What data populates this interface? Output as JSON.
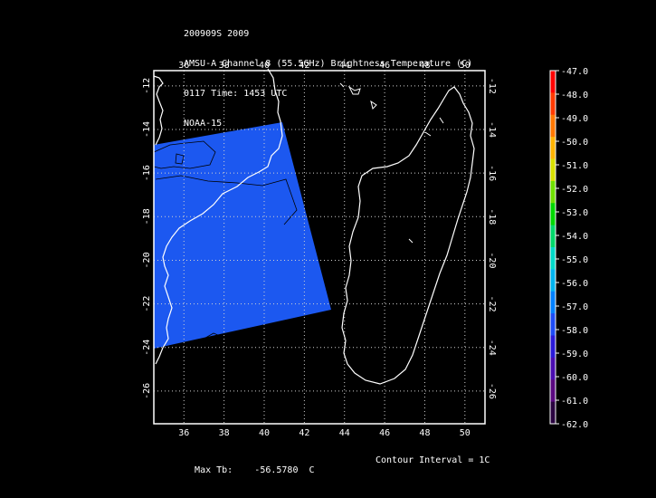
{
  "header": {
    "line1": "200909S 2009",
    "line2": "AMSU-A Channel 8 (55.5GHz) Brightness Temperature (C)",
    "line3": "0117 Time: 1453 UTC",
    "line4": "NOAA-15"
  },
  "map": {
    "lon_ticks": [
      36,
      38,
      40,
      42,
      44,
      46,
      48,
      50
    ],
    "lat_ticks": [
      -12,
      -14,
      -16,
      -18,
      -20,
      -22,
      -24,
      -26
    ],
    "lon_range": [
      34.5,
      51.0
    ],
    "lat_range": [
      -11.3,
      -27.5
    ],
    "swath_color": "#1c58f0",
    "grid": "dotted"
  },
  "colorbar": {
    "labels": [
      "-47.0",
      "-48.0",
      "-49.0",
      "-50.0",
      "-51.0",
      "-52.0",
      "-53.0",
      "-54.0",
      "-55.0",
      "-56.0",
      "-57.0",
      "-58.0",
      "-59.0",
      "-60.0",
      "-61.0",
      "-62.0"
    ],
    "colors": [
      "#ff0000",
      "#ff3a00",
      "#ff7700",
      "#ffb300",
      "#d8e000",
      "#6fe000",
      "#00d800",
      "#00d86a",
      "#00d8c8",
      "#00b4f0",
      "#0080ff",
      "#1e4cf5",
      "#2a1ad8",
      "#4a0cb0",
      "#5a0880",
      "#2a0440"
    ]
  },
  "footer": {
    "max_tb_label": "Max Tb:",
    "max_tb_value": "-56.5780",
    "max_tb_unit": "C",
    "contour_label": "Contour Interval = 1C"
  }
}
